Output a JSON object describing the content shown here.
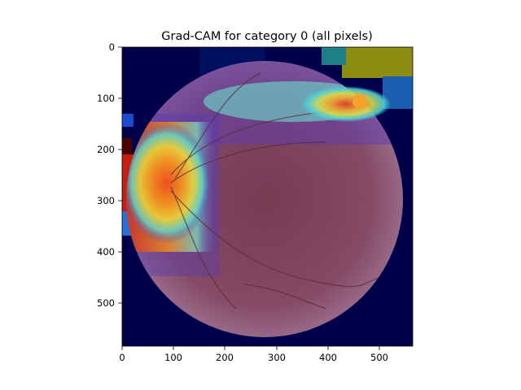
{
  "figure": {
    "title": "Grad-CAM for category 0 (all pixels)"
  },
  "axes": {
    "x_ticks": [
      "0",
      "100",
      "200",
      "300",
      "400",
      "500"
    ],
    "y_ticks": [
      "0",
      "100",
      "200",
      "300",
      "400",
      "500"
    ],
    "x_range": [
      0,
      565
    ],
    "y_range": [
      0,
      584
    ]
  },
  "image": {
    "description_kind": "fundus photograph with jet-colormap heatmap overlay",
    "colormap": "jet",
    "heatmap_colors": {
      "background": "#00004a",
      "red": "#e8361e",
      "orange": "#f59a2a",
      "yellow": "#e6d23c",
      "cyan": "#4fd0d8",
      "olive": "#8c8c10",
      "retina": "#8a4a5e"
    }
  }
}
